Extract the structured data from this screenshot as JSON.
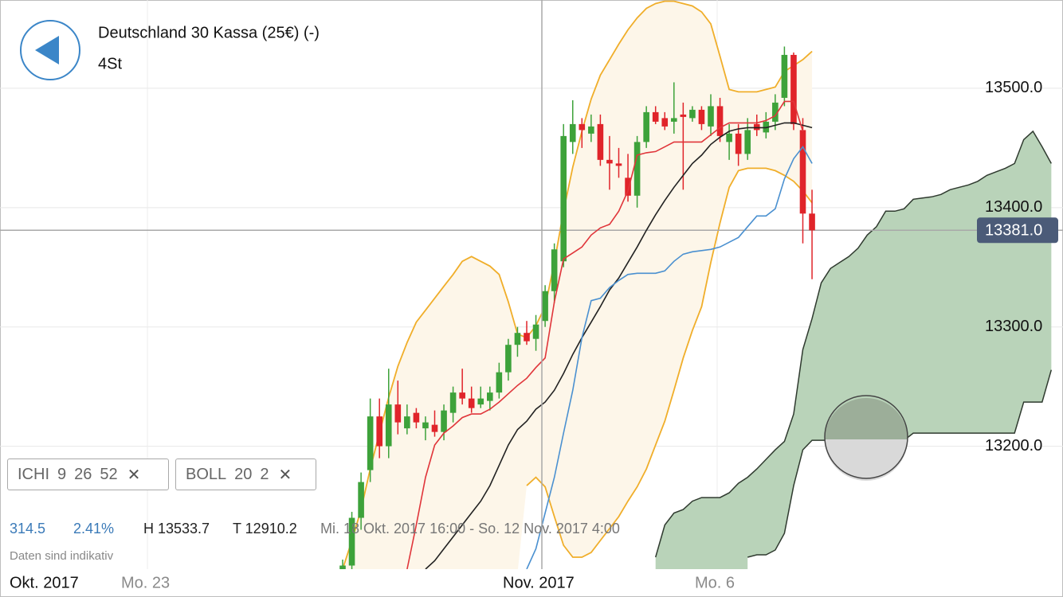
{
  "chart_data": {
    "type": "candlestick",
    "title": "Deutschland 30 Kassa (25€) (-)",
    "subtitle": "4St",
    "x_labels": [
      "Okt. 2017",
      "Mo. 23",
      "Nov. 2017",
      "Mo. 6"
    ],
    "up_color": "#3da23a",
    "down_color": "#e0242a",
    "open": [
      13090,
      13100,
      13140,
      13180,
      13225,
      13200,
      13235,
      13215,
      13228,
      13215,
      13218,
      13212,
      13228,
      13245,
      13240,
      13235,
      13238,
      13245,
      13262,
      13285,
      13295,
      13290,
      13305,
      13330,
      13355,
      13455,
      13470,
      13462,
      13470,
      13440,
      13437,
      13425,
      13410,
      13455,
      13480,
      13475,
      13472,
      13478,
      13475,
      13482,
      13468,
      13485,
      13455,
      13462,
      13445,
      13470,
      13463,
      13472,
      13492,
      13528,
      13465,
      13395
    ],
    "high": [
      13105,
      13145,
      13178,
      13240,
      13240,
      13265,
      13255,
      13235,
      13232,
      13225,
      13230,
      13235,
      13250,
      13265,
      13250,
      13250,
      13250,
      13270,
      13290,
      13300,
      13305,
      13310,
      13335,
      13370,
      13470,
      13490,
      13475,
      13478,
      13478,
      13460,
      13450,
      13445,
      13460,
      13485,
      13485,
      13480,
      13505,
      13488,
      13485,
      13485,
      13495,
      13492,
      13470,
      13470,
      13475,
      13478,
      13480,
      13495,
      13535,
      13530,
      13475,
      13415
    ],
    "low": [
      13085,
      13090,
      13130,
      13170,
      13190,
      13190,
      13210,
      13210,
      13215,
      13205,
      13208,
      13205,
      13220,
      13235,
      13228,
      13232,
      13230,
      13240,
      13255,
      13275,
      13285,
      13280,
      13300,
      13320,
      13350,
      13445,
      13450,
      13455,
      13435,
      13415,
      13425,
      13405,
      13400,
      13450,
      13470,
      13465,
      13462,
      13415,
      13472,
      13465,
      13460,
      13455,
      13440,
      13435,
      13440,
      13460,
      13458,
      13465,
      13485,
      13465,
      13370,
      13340
    ],
    "close": [
      13100,
      13140,
      13170,
      13225,
      13200,
      13235,
      13220,
      13225,
      13220,
      13220,
      13212,
      13230,
      13245,
      13240,
      13232,
      13240,
      13245,
      13262,
      13285,
      13295,
      13288,
      13302,
      13330,
      13365,
      13460,
      13470,
      13465,
      13468,
      13440,
      13437,
      13435,
      13410,
      13455,
      13480,
      13472,
      13468,
      13475,
      13476,
      13482,
      13470,
      13485,
      13460,
      13462,
      13445,
      13465,
      13465,
      13472,
      13488,
      13528,
      13470,
      13395,
      13381
    ],
    "bands": {
      "fill": "#fdf6e9",
      "color": "#f0ae2a",
      "upper": [
        13097,
        13121,
        13147,
        13181,
        13211,
        13241,
        13267,
        13287,
        13304,
        13314,
        13324,
        13334,
        13344,
        13355,
        13359,
        13355,
        13351,
        13344,
        13321,
        13294,
        13291,
        13301,
        13317,
        13354,
        13397,
        13434,
        13464,
        13491,
        13511,
        13524,
        13537,
        13549,
        13559,
        13567,
        13571,
        13573,
        13573,
        13571,
        13569,
        13564,
        13554,
        13527,
        13499,
        13497,
        13497,
        13497,
        13499,
        13501,
        13514,
        13519,
        13524,
        13531
      ],
      "lower": [
        null,
        null,
        null,
        null,
        null,
        null,
        null,
        null,
        null,
        null,
        null,
        null,
        null,
        null,
        null,
        null,
        null,
        null,
        null,
        null,
        13167,
        13174,
        13166,
        13141,
        13117,
        13107,
        13107,
        13111,
        13121,
        13131,
        13141,
        13154,
        13166,
        13181,
        13201,
        13221,
        13247,
        13274,
        13297,
        13317,
        13354,
        13387,
        13417,
        13431,
        13433,
        13433,
        13433,
        13431,
        13427,
        13422,
        13414,
        13404
      ]
    },
    "lines": [
      {
        "color": "#222222",
        "values": [
          null,
          null,
          null,
          null,
          null,
          null,
          null,
          null,
          null,
          13097,
          13104,
          13114,
          13124,
          13134,
          13144,
          13154,
          13167,
          13184,
          13201,
          13214,
          13221,
          13231,
          13237,
          13247,
          13261,
          13277,
          13291,
          13304,
          13317,
          13331,
          13341,
          13354,
          13367,
          13381,
          13394,
          13406,
          13417,
          13427,
          13437,
          13444,
          13453,
          13459,
          13464,
          13466,
          13467,
          13467,
          13467,
          13469,
          13471,
          13471,
          13469,
          13467
        ]
      },
      {
        "color": "#e0353a",
        "values": [
          null,
          null,
          null,
          null,
          null,
          null,
          null,
          13097,
          13134,
          13174,
          13201,
          13211,
          13217,
          13224,
          13227,
          13227,
          13231,
          13237,
          13244,
          13251,
          13257,
          13266,
          13274,
          13321,
          13357,
          13362,
          13367,
          13377,
          13383,
          13386,
          13397,
          13414,
          13444,
          13446,
          13447,
          13451,
          13455,
          13455,
          13455,
          13455,
          13461,
          13467,
          13471,
          13471,
          13471,
          13471,
          13473,
          13477,
          13489,
          13489,
          13464,
          null
        ]
      },
      {
        "color": "#4a90d0",
        "values": [
          null,
          null,
          null,
          null,
          null,
          null,
          null,
          null,
          null,
          null,
          null,
          null,
          null,
          null,
          null,
          null,
          null,
          null,
          null,
          null,
          13097,
          13114,
          13144,
          13174,
          13211,
          13247,
          13291,
          13322,
          13324,
          13333,
          13339,
          13344,
          13345,
          13345,
          13345,
          13347,
          13355,
          13361,
          13363,
          13364,
          13365,
          13367,
          13371,
          13375,
          13384,
          13393,
          13393,
          13399,
          13424,
          13441,
          13451,
          13437
        ]
      }
    ],
    "cloud": {
      "fill": "#b9d3b9",
      "color": "#2f3a2f",
      "span_a": [
        null,
        null,
        null,
        null,
        null,
        null,
        null,
        null,
        null,
        null,
        null,
        null,
        null,
        null,
        null,
        null,
        null,
        null,
        null,
        null,
        null,
        null,
        null,
        null,
        null,
        null,
        null,
        null,
        null,
        null,
        null,
        null,
        null,
        null,
        13107,
        13134,
        13144,
        13147,
        13154,
        13157,
        13157,
        13157,
        13161,
        13169,
        13174,
        13181,
        13189,
        13197,
        13204,
        13227,
        13281,
        13307,
        13337,
        13349,
        13354,
        13359,
        13366,
        13377,
        13384,
        13397,
        13397,
        13399,
        13407,
        13408,
        13409,
        13411,
        13415,
        13417,
        13419,
        13422,
        13427,
        13430,
        13433,
        13437,
        13457,
        13464,
        13451,
        13437
      ],
      "span_b": [
        null,
        null,
        null,
        null,
        null,
        null,
        null,
        null,
        null,
        null,
        null,
        null,
        null,
        null,
        null,
        null,
        null,
        null,
        null,
        null,
        null,
        null,
        null,
        null,
        null,
        null,
        null,
        null,
        null,
        null,
        null,
        null,
        null,
        null,
        null,
        null,
        null,
        null,
        null,
        null,
        null,
        null,
        null,
        null,
        13107,
        13109,
        13109,
        13113,
        13127,
        13167,
        13197,
        13205,
        13205,
        13205,
        13205,
        13205,
        13205,
        13205,
        13205,
        13205,
        13205,
        13205,
        13211,
        13211,
        13211,
        13211,
        13211,
        13211,
        13211,
        13211,
        13211,
        13211,
        13211,
        13211,
        13237,
        13237,
        13237,
        13264
      ]
    },
    "ylim": [
      13097,
      13574
    ],
    "yticks": [
      {
        "value": 13200,
        "label": "13200.0"
      },
      {
        "value": 13300,
        "label": "13300.0"
      },
      {
        "value": 13400,
        "label": "13400.0"
      },
      {
        "value": 13500,
        "label": "13500.0"
      }
    ],
    "grid": true,
    "last_price": {
      "value": 13381,
      "label": "13381.0",
      "color": "#4b5b78"
    }
  },
  "indicators": [
    {
      "name": "ICHI",
      "params": [
        "9",
        "26",
        "52"
      ]
    },
    {
      "name": "BOLL",
      "params": [
        "20",
        "2"
      ]
    }
  ],
  "info": {
    "change": "314.5",
    "change_pct": "2.41%",
    "high": "H 13533.7",
    "low": "T 12910.2",
    "range": "Mi. 18 Okt. 2017 16:00 - So. 12 Nov. 2017 4:00",
    "note": "Daten sind indikativ"
  }
}
